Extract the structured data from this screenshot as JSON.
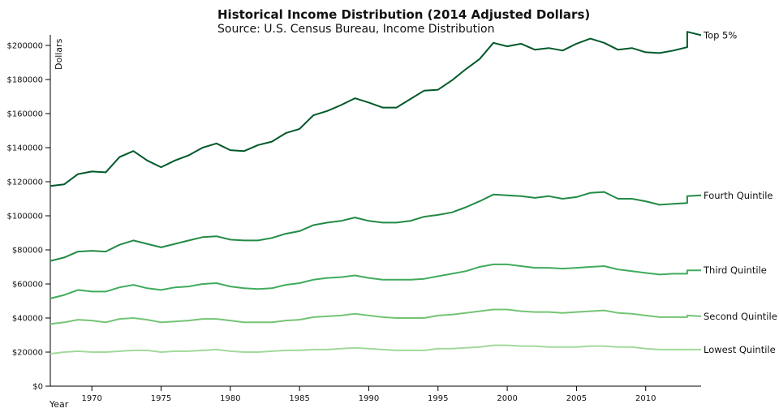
{
  "header": {
    "title": "Historical Income Distribution (2014 Adjusted Dollars)",
    "subtitle": "Source: U.S. Census Bureau, Income Distribution"
  },
  "chart_data": {
    "type": "line",
    "title": "Historical Income Distribution (2014 Adjusted Dollars)",
    "subtitle": "Source: U.S. Census Bureau, Income Distribution",
    "xlabel": "Year",
    "ylabel": "Dollars",
    "xlim": [
      1967,
      2014
    ],
    "ylim": [
      0,
      210000
    ],
    "x_ticks": [
      1970,
      1975,
      1980,
      1985,
      1990,
      1995,
      2000,
      2005,
      2010
    ],
    "y_ticks": [
      0,
      20000,
      40000,
      60000,
      80000,
      100000,
      120000,
      140000,
      160000,
      180000,
      200000
    ],
    "y_tick_labels": [
      "$0",
      "$20000",
      "$40000",
      "$60000",
      "$80000",
      "$100000",
      "$120000",
      "$140000",
      "$160000",
      "$180000",
      "$200000"
    ],
    "grid": false,
    "legend": "inline labels at right end of lines",
    "x": [
      1967,
      1968,
      1969,
      1970,
      1971,
      1972,
      1973,
      1974,
      1975,
      1976,
      1977,
      1978,
      1979,
      1980,
      1981,
      1982,
      1983,
      1984,
      1985,
      1986,
      1987,
      1988,
      1989,
      1990,
      1991,
      1992,
      1993,
      1994,
      1995,
      1996,
      1997,
      1998,
      1999,
      2000,
      2001,
      2002,
      2003,
      2004,
      2005,
      2006,
      2007,
      2008,
      2009,
      2010,
      2011,
      2012,
      2013,
      2013,
      2014
    ],
    "series": [
      {
        "name": "Top 5%",
        "color": "#00592a",
        "values": [
          117500,
          118500,
          124500,
          126000,
          125500,
          134500,
          138000,
          132500,
          128500,
          132500,
          135500,
          140000,
          142500,
          138500,
          138000,
          141500,
          143500,
          148500,
          151000,
          159000,
          161500,
          165000,
          169000,
          166500,
          163500,
          163500,
          168500,
          173500,
          174000,
          179500,
          186000,
          192000,
          201500,
          199500,
          201000,
          197500,
          198500,
          197000,
          201000,
          204000,
          201500,
          197500,
          198500,
          196000,
          195500,
          197000,
          199000,
          208000,
          206000
        ]
      },
      {
        "name": "Fourth Quintile",
        "color": "#238b45",
        "values": [
          73500,
          75500,
          79000,
          79500,
          79000,
          83000,
          85500,
          83500,
          81500,
          83500,
          85500,
          87500,
          88000,
          86000,
          85500,
          85500,
          87000,
          89500,
          91000,
          94500,
          96000,
          97000,
          99000,
          97000,
          96000,
          96000,
          97000,
          99500,
          100500,
          102000,
          105000,
          108500,
          112500,
          112000,
          111500,
          110500,
          111500,
          110000,
          111000,
          113500,
          114000,
          110000,
          110000,
          108500,
          106500,
          107000,
          107500,
          111500,
          112000
        ]
      },
      {
        "name": "Third Quintile",
        "color": "#41ab5d",
        "values": [
          51500,
          53500,
          56500,
          55500,
          55500,
          58000,
          59500,
          57500,
          56500,
          58000,
          58500,
          60000,
          60500,
          58500,
          57500,
          57000,
          57500,
          59500,
          60500,
          62500,
          63500,
          64000,
          65000,
          63500,
          62500,
          62500,
          62500,
          63000,
          64500,
          66000,
          67500,
          70000,
          71500,
          71500,
          70500,
          69500,
          69500,
          69000,
          69500,
          70000,
          70500,
          68500,
          67500,
          66500,
          65500,
          66000,
          66000,
          68000,
          68000
        ]
      },
      {
        "name": "Second Quintile",
        "color": "#74c476",
        "values": [
          36500,
          37500,
          39000,
          38500,
          37500,
          39500,
          40000,
          39000,
          37500,
          38000,
          38500,
          39500,
          39500,
          38500,
          37500,
          37500,
          37500,
          38500,
          39000,
          40500,
          41000,
          41500,
          42500,
          41500,
          40500,
          40000,
          40000,
          40000,
          41500,
          42000,
          43000,
          44000,
          45000,
          45000,
          44000,
          43500,
          43500,
          43000,
          43500,
          44000,
          44500,
          43000,
          42500,
          41500,
          40500,
          40500,
          40500,
          41500,
          41000
        ]
      },
      {
        "name": "Lowest Quintile",
        "color": "#a1d99b",
        "values": [
          19000,
          20000,
          20500,
          20000,
          20000,
          20500,
          21000,
          21000,
          20000,
          20500,
          20500,
          21000,
          21500,
          20500,
          20000,
          20000,
          20500,
          21000,
          21000,
          21500,
          21500,
          22000,
          22500,
          22000,
          21500,
          21000,
          21000,
          21000,
          22000,
          22000,
          22500,
          23000,
          24000,
          24000,
          23500,
          23500,
          23000,
          23000,
          23000,
          23500,
          23500,
          23000,
          23000,
          22000,
          21500,
          21500,
          21500,
          21500,
          21500
        ]
      }
    ]
  }
}
